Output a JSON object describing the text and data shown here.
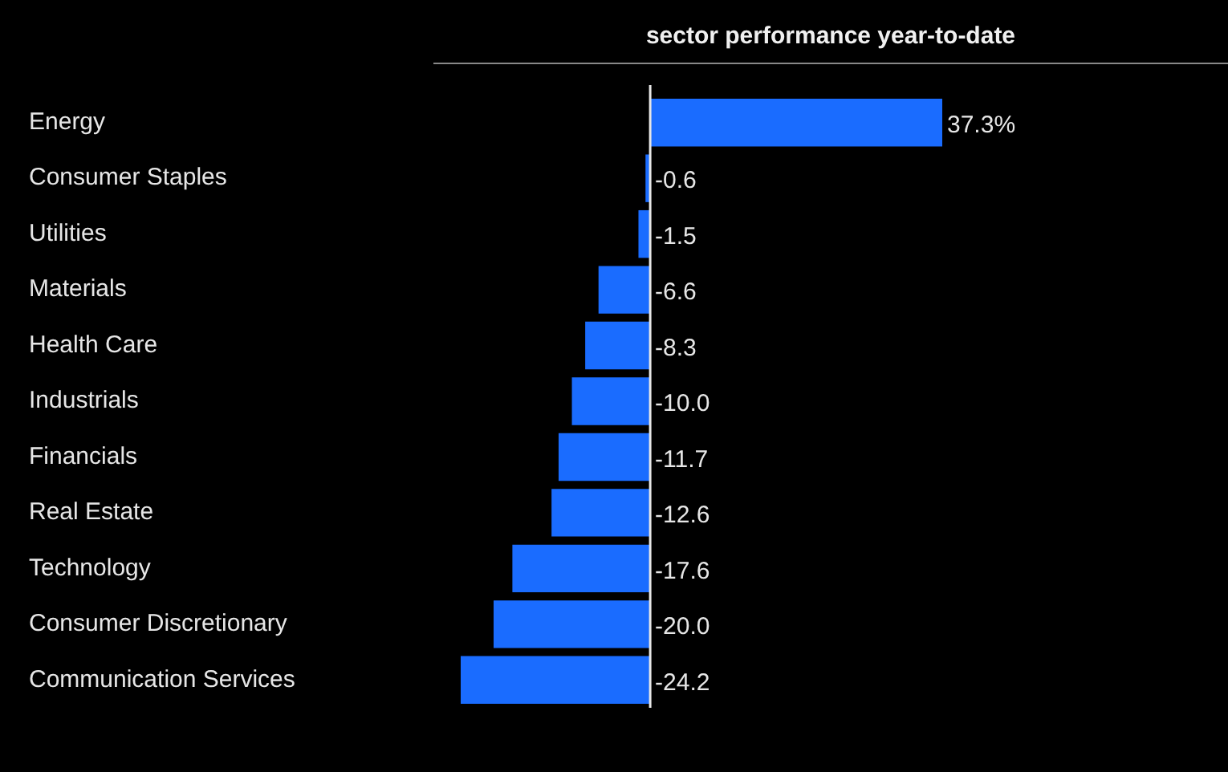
{
  "chart_data": {
    "type": "bar",
    "orientation": "horizontal",
    "title": "sector performance year-to-date",
    "categories": [
      "Energy",
      "Consumer Staples",
      "Utilities",
      "Materials",
      "Health Care",
      "Industrials",
      "Financials",
      "Real Estate",
      "Technology",
      "Consumer Discretionary",
      "Communication Services"
    ],
    "values": [
      37.3,
      -0.6,
      -1.5,
      -6.6,
      -8.3,
      -10.0,
      -11.7,
      -12.6,
      -17.6,
      -20.0,
      -24.2
    ],
    "value_labels": [
      "37.3%",
      "-0.6",
      "-1.5",
      "-6.6",
      "-8.3",
      "-10.0",
      "-11.7",
      "-12.6",
      "-17.6",
      "-20.0",
      "-24.2"
    ],
    "color": "#1a6cff",
    "tick_labels": "y",
    "legend": false,
    "ref_lines": [
      {
        "axis": "x",
        "value": 0,
        "color": "#e6e6e6"
      }
    ]
  }
}
